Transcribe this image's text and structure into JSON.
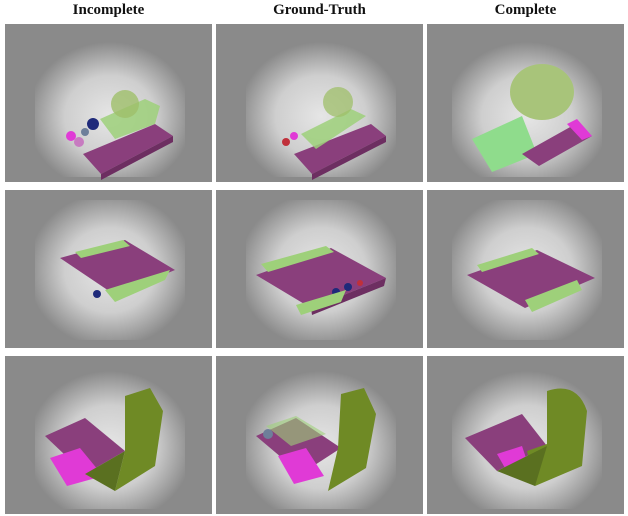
{
  "columns": [
    {
      "title": "Incomplete"
    },
    {
      "title": "Ground-Truth"
    },
    {
      "title": "Complete"
    }
  ],
  "rows": 3,
  "colors": {
    "background": "#8a8a8a",
    "glow": "#e8e8e8",
    "floor_purple": "#8a3f7c",
    "vegetation_green": "#9ed07a",
    "light_green": "#b6e39a",
    "olive": "#6f8a25",
    "magenta": "#e03ad6",
    "navy": "#1f2a7a",
    "red": "#c0303a",
    "gray_blue": "#6e7f9a"
  }
}
